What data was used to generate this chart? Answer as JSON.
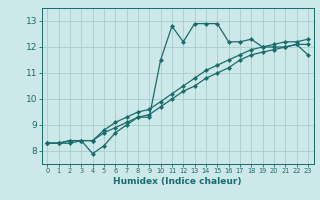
{
  "xlabel": "Humidex (Indice chaleur)",
  "bg_color": "#cce8e8",
  "grid_color": "#aacccc",
  "line_color": "#1a6b6b",
  "marker": "D",
  "markersize": 2.2,
  "linewidth": 0.9,
  "xlim": [
    -0.5,
    23.5
  ],
  "ylim": [
    7.5,
    13.5
  ],
  "xticks": [
    0,
    1,
    2,
    3,
    4,
    5,
    6,
    7,
    8,
    9,
    10,
    11,
    12,
    13,
    14,
    15,
    16,
    17,
    18,
    19,
    20,
    21,
    22,
    23
  ],
  "yticks": [
    8,
    9,
    10,
    11,
    12,
    13
  ],
  "series1_x": [
    0,
    1,
    2,
    3,
    4,
    5,
    6,
    7,
    8,
    9,
    10,
    11,
    12,
    13,
    14,
    15,
    16,
    17,
    18,
    19,
    20,
    21,
    22,
    23
  ],
  "series1_y": [
    8.3,
    8.3,
    8.3,
    8.4,
    7.9,
    8.2,
    8.7,
    9.0,
    9.3,
    9.3,
    11.5,
    12.8,
    12.2,
    12.9,
    12.9,
    12.9,
    12.2,
    12.2,
    12.3,
    12.0,
    12.0,
    12.0,
    12.1,
    11.7
  ],
  "series2_x": [
    0,
    1,
    2,
    3,
    4,
    5,
    6,
    7,
    8,
    9,
    10,
    11,
    12,
    13,
    14,
    15,
    16,
    17,
    18,
    19,
    20,
    21,
    22,
    23
  ],
  "series2_y": [
    8.3,
    8.3,
    8.4,
    8.4,
    8.4,
    8.8,
    9.1,
    9.3,
    9.5,
    9.6,
    9.9,
    10.2,
    10.5,
    10.8,
    11.1,
    11.3,
    11.5,
    11.7,
    11.9,
    12.0,
    12.1,
    12.2,
    12.2,
    12.3
  ],
  "series3_x": [
    0,
    1,
    2,
    3,
    4,
    5,
    6,
    7,
    8,
    9,
    10,
    11,
    12,
    13,
    14,
    15,
    16,
    17,
    18,
    19,
    20,
    21,
    22,
    23
  ],
  "series3_y": [
    8.3,
    8.3,
    8.4,
    8.4,
    8.4,
    8.7,
    8.9,
    9.1,
    9.3,
    9.4,
    9.7,
    10.0,
    10.3,
    10.5,
    10.8,
    11.0,
    11.2,
    11.5,
    11.7,
    11.8,
    11.9,
    12.0,
    12.1,
    12.1
  ]
}
